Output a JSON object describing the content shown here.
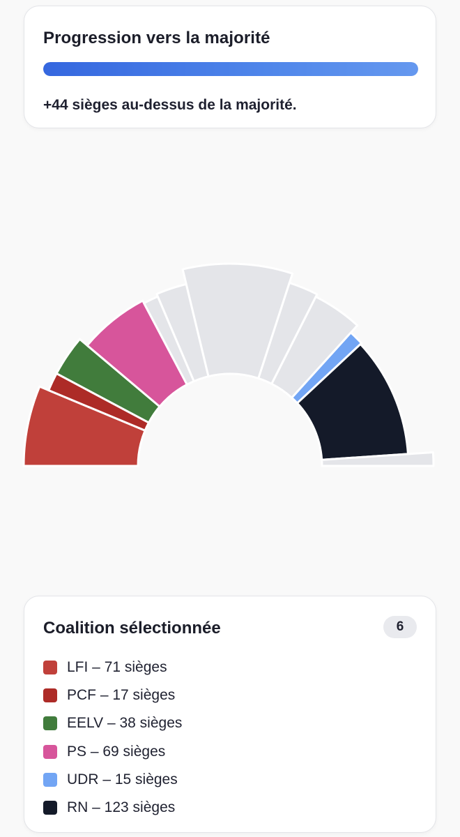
{
  "progress": {
    "title": "Progression vers la majorité",
    "fill_fraction": 1.0,
    "message": "+44 sièges au-dessus de la majorité."
  },
  "coalition": {
    "title": "Coalition sélectionnée",
    "count": "6",
    "items": [
      {
        "label": "LFI – 71 sièges",
        "color": "#c0403a"
      },
      {
        "label": "PCF – 17 sièges",
        "color": "#ad2b27"
      },
      {
        "label": "EELV – 38 sièges",
        "color": "#417c3c"
      },
      {
        "label": "PS – 69 sièges",
        "color": "#d7559b"
      },
      {
        "label": "UDR – 15 sièges",
        "color": "#72a5f4"
      },
      {
        "label": "RN – 123 sièges",
        "color": "#141a29"
      }
    ]
  },
  "chart_data": {
    "type": "hemicycle",
    "unselected_color": "#e4e5e9",
    "groups": [
      {
        "name": "LFI",
        "seats": 71,
        "selected": true,
        "color": "#c0403a"
      },
      {
        "name": "PCF",
        "seats": 17,
        "selected": true,
        "color": "#ad2b27"
      },
      {
        "name": "EELV",
        "seats": 38,
        "selected": true,
        "color": "#417c3c"
      },
      {
        "name": "PS",
        "seats": 69,
        "selected": true,
        "color": "#d7559b"
      },
      {
        "name": "",
        "seats": 15,
        "selected": false
      },
      {
        "name": "",
        "seats": 30,
        "selected": false
      },
      {
        "name": "",
        "seats": 99,
        "selected": false
      },
      {
        "name": "",
        "seats": 28,
        "selected": false
      },
      {
        "name": "",
        "seats": 48,
        "selected": false
      },
      {
        "name": "UDR",
        "seats": 15,
        "selected": true,
        "color": "#72a5f4"
      },
      {
        "name": "RN",
        "seats": 123,
        "selected": true,
        "color": "#141a29"
      },
      {
        "name": "",
        "seats": 12,
        "selected": false
      }
    ]
  }
}
